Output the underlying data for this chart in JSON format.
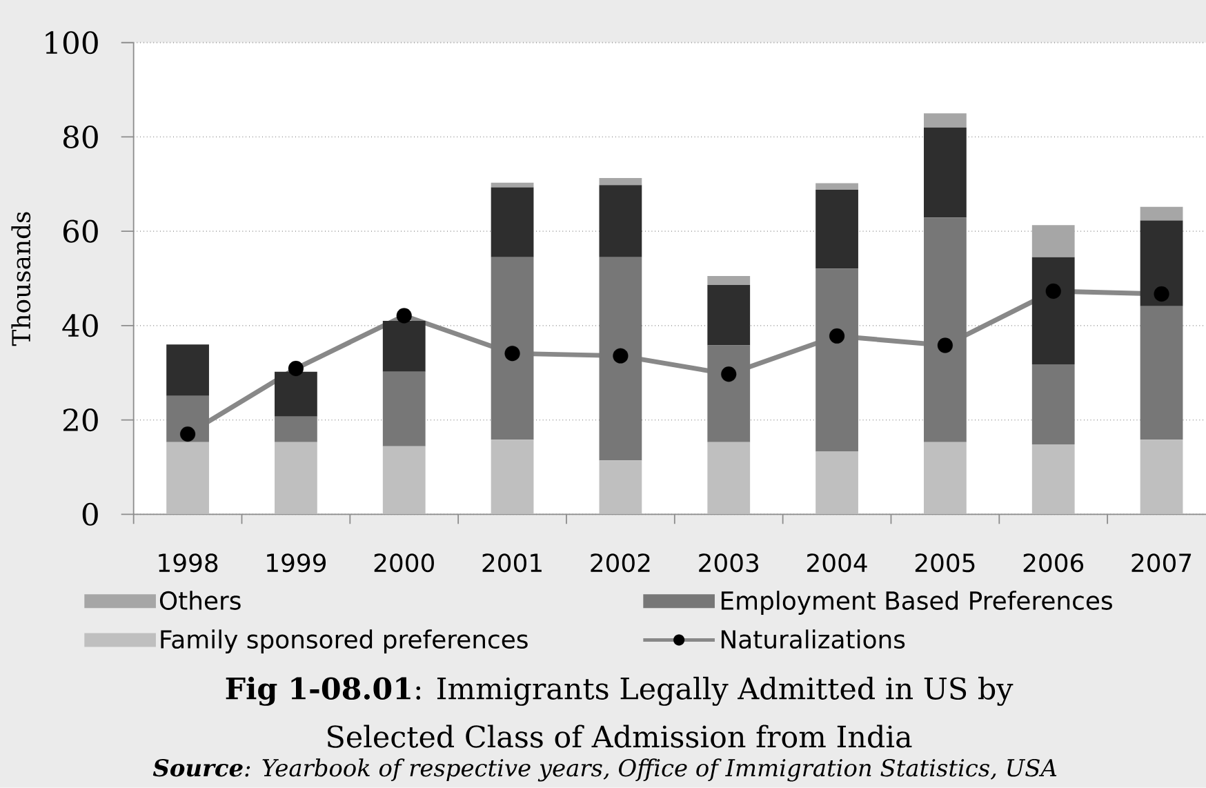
{
  "chart_data": {
    "type": "bar",
    "stacked": true,
    "title": "**Fig 1-08.01**: Immigrants Legally Admitted in US by Selected Class of Admission from India",
    "ylabel": "Thousands",
    "categories": [
      "1998",
      "1999",
      "2000",
      "2001",
      "2002",
      "2003",
      "2004",
      "2005",
      "2006",
      "2007"
    ],
    "series": [
      {
        "name": "Family sponsored preferences",
        "color": "#bfbfbf",
        "values": [
          15.3,
          15.3,
          14.4,
          15.8,
          11.4,
          15.3,
          13.3,
          15.3,
          14.8,
          15.8
        ]
      },
      {
        "name": "Employment Based Preferences",
        "color": "#777777",
        "values": [
          9.8,
          5.4,
          15.8,
          38.7,
          43.1,
          20.5,
          38.8,
          47.6,
          17.0,
          28.3
        ]
      },
      {
        "color": "#2e2e2e",
        "values": [
          10.9,
          9.5,
          10.8,
          14.8,
          15.3,
          12.8,
          16.7,
          19.1,
          22.7,
          18.2
        ]
      },
      {
        "name": "Others",
        "color": "#a6a6a6",
        "values": [
          null,
          null,
          null,
          1.0,
          1.5,
          1.9,
          1.4,
          3.0,
          6.8,
          2.9
        ]
      },
      {
        "name": "Naturalizations",
        "type": "line",
        "color": "#888888",
        "marker": "circle",
        "values": [
          17.0,
          30.9,
          42.1,
          34.1,
          33.6,
          29.7,
          37.8,
          35.8,
          47.3,
          46.7
        ]
      }
    ],
    "ylim": [
      0,
      100
    ],
    "yticks": [
      0,
      20,
      40,
      60,
      80,
      100
    ],
    "grid": "y",
    "legend": "bottom",
    "annotations": [
      "**Source**: Yearbook of respective years, Office of Immigration Statistics, USA"
    ]
  }
}
